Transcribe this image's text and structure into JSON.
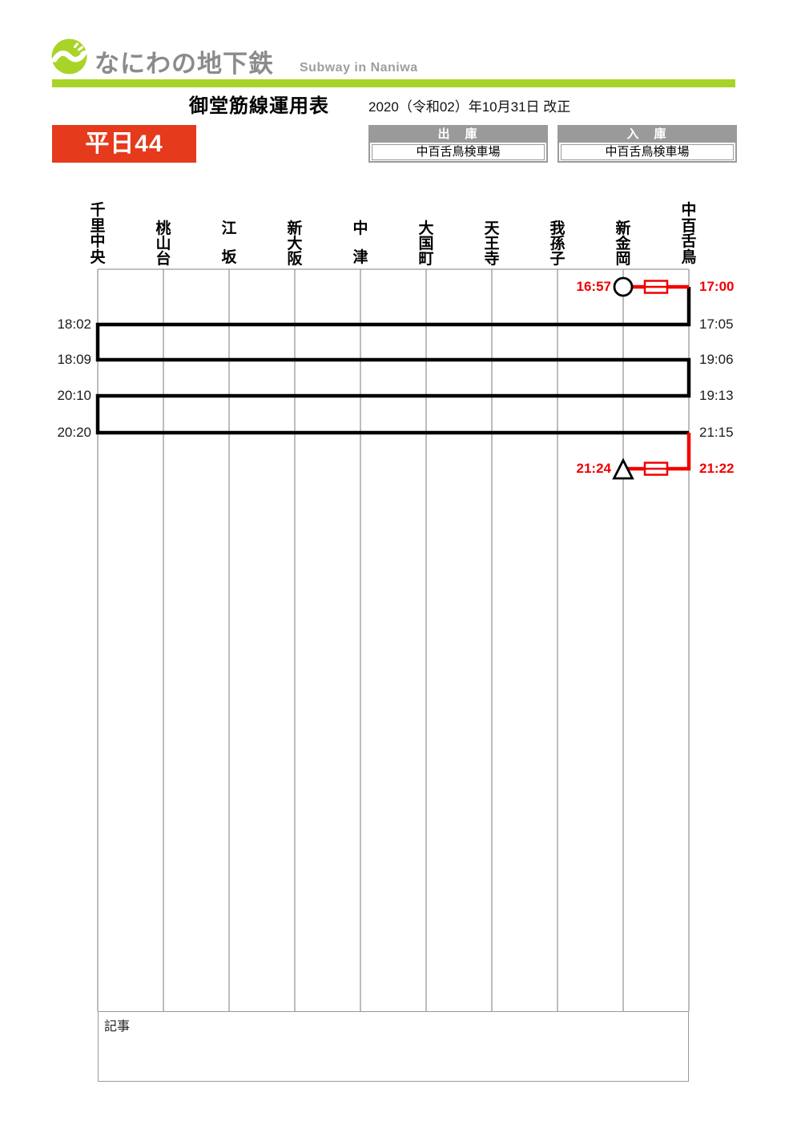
{
  "header": {
    "logo_text": "なにわの地下鉄",
    "logo_subtitle": "Subway in Naniwa"
  },
  "title": {
    "main": "御堂筋線運用表",
    "revision": "2020（令和02）年10月31日 改正"
  },
  "badge": {
    "label": "平日44"
  },
  "depots": {
    "out": {
      "header": "出　庫",
      "value": "中百舌鳥検車場"
    },
    "in": {
      "header": "入　庫",
      "value": "中百舌鳥検車場"
    }
  },
  "diagram": {
    "stations": [
      "千里中央",
      "桃山台",
      "江坂",
      "新大阪",
      "中津",
      "大国町",
      "天王寺",
      "我孫子",
      "新金岡",
      "中百舌鳥"
    ],
    "time_labels": [
      {
        "text": "16:57",
        "row": 0,
        "anchor": "inline",
        "color": "red"
      },
      {
        "text": "17:00",
        "row": 0,
        "anchor": "right",
        "color": "red"
      },
      {
        "text": "18:02",
        "row": 1,
        "anchor": "left",
        "color": "black"
      },
      {
        "text": "17:05",
        "row": 1,
        "anchor": "right",
        "color": "black"
      },
      {
        "text": "18:09",
        "row": 2,
        "anchor": "left",
        "color": "black"
      },
      {
        "text": "19:06",
        "row": 2,
        "anchor": "right",
        "color": "black"
      },
      {
        "text": "20:10",
        "row": 3,
        "anchor": "left",
        "color": "black"
      },
      {
        "text": "19:13",
        "row": 3,
        "anchor": "right",
        "color": "black"
      },
      {
        "text": "20:20",
        "row": 4,
        "anchor": "left",
        "color": "black"
      },
      {
        "text": "21:15",
        "row": 4,
        "anchor": "right",
        "color": "black"
      },
      {
        "text": "21:24",
        "row": 5,
        "anchor": "inline",
        "color": "red"
      },
      {
        "text": "21:22",
        "row": 5,
        "anchor": "right",
        "color": "red"
      }
    ],
    "trips": [
      {
        "depart_station": "新金岡",
        "depart": "16:57",
        "arrive_station": "中百舌鳥",
        "arrive": "17:00",
        "type": "deadhead-from-depot"
      },
      {
        "depart_station": "中百舌鳥",
        "depart": "17:05",
        "arrive_station": "千里中央",
        "arrive": "18:02",
        "type": "revenue"
      },
      {
        "depart_station": "千里中央",
        "depart": "18:09",
        "arrive_station": "中百舌鳥",
        "arrive": "19:06",
        "type": "revenue"
      },
      {
        "depart_station": "中百舌鳥",
        "depart": "19:13",
        "arrive_station": "千里中央",
        "arrive": "20:10",
        "type": "revenue"
      },
      {
        "depart_station": "千里中央",
        "depart": "20:20",
        "arrive_station": "中百舌鳥",
        "arrive": "21:15",
        "type": "revenue"
      },
      {
        "depart_station": "中百舌鳥",
        "depart": "21:22",
        "arrive_station": "新金岡",
        "arrive": "21:24",
        "type": "deadhead-to-depot"
      }
    ]
  },
  "notes": {
    "label": "記事"
  },
  "colors": {
    "accent_green": "#a8d428",
    "badge_red": "#e53a1b",
    "diagram_red": "#f20000",
    "table_gray": "#9a9a9a"
  }
}
